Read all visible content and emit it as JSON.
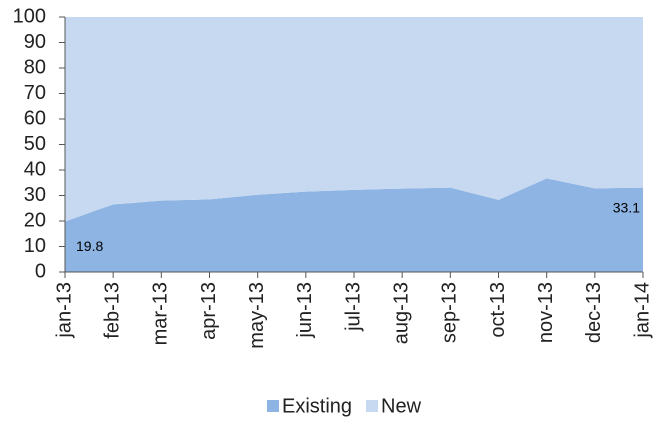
{
  "chart_data": {
    "type": "area",
    "stacked": true,
    "categories": [
      "jan-13",
      "feb-13",
      "mar-13",
      "apr-13",
      "may-13",
      "jun-13",
      "jul-13",
      "aug-13",
      "sep-13",
      "oct-13",
      "nov-13",
      "dec-13",
      "jan-14"
    ],
    "series": [
      {
        "name": "Existing",
        "color": "#8eb4e3",
        "values": [
          19.8,
          26.5,
          28,
          28.5,
          30.3,
          31.5,
          32.2,
          32.7,
          33.1,
          28.3,
          36.7,
          32.8,
          33.1
        ]
      },
      {
        "name": "New",
        "color": "#c6d9f1",
        "values": [
          80.2,
          73.5,
          72,
          71.5,
          69.7,
          68.5,
          67.8,
          67.3,
          66.9,
          71.7,
          63.3,
          67.2,
          66.9
        ]
      }
    ],
    "data_labels": "ends",
    "ylim": [
      0,
      100
    ],
    "yticks": [
      0,
      10,
      20,
      30,
      40,
      50,
      60,
      70,
      80,
      90,
      100
    ],
    "legend": "bottom"
  }
}
